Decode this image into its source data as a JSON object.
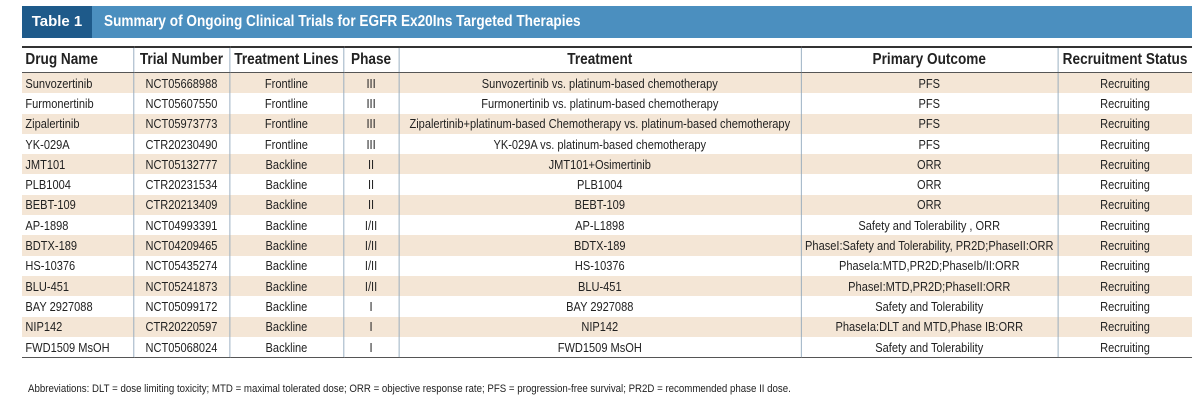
{
  "header": {
    "label": "Table 1",
    "title": "Summary of Ongoing Clinical Trials for EGFR Ex20Ins Targeted Therapies"
  },
  "table": {
    "columns": [
      "Drug Name",
      "Trial Number",
      "Treatment Lines",
      "Phase",
      "Treatment",
      "Primary Outcome",
      "Recruitment Status"
    ],
    "rows": [
      [
        "Sunvozertinib",
        "NCT05668988",
        "Frontline",
        "III",
        "Sunvozertinib vs. platinum-based chemotherapy",
        "PFS",
        "Recruiting"
      ],
      [
        "Furmonertinib",
        "NCT05607550",
        "Frontline",
        "III",
        "Furmonertinib vs. platinum-based chemotherapy",
        "PFS",
        "Recruiting"
      ],
      [
        "Zipalertinib",
        "NCT05973773",
        "Frontline",
        "III",
        "Zipalertinib+platinum-based Chemotherapy vs. platinum-based chemotherapy",
        "PFS",
        "Recruiting"
      ],
      [
        "YK-029A",
        "CTR20230490",
        "Frontline",
        "III",
        "YK-029A vs. platinum-based chemotherapy",
        "PFS",
        "Recruiting"
      ],
      [
        "JMT101",
        "NCT05132777",
        "Backline",
        "II",
        "JMT101+Osimertinib",
        "ORR",
        "Recruiting"
      ],
      [
        "PLB1004",
        "CTR20231534",
        "Backline",
        "II",
        "PLB1004",
        "ORR",
        "Recruiting"
      ],
      [
        "BEBT-109",
        "CTR20213409",
        "Backline",
        "II",
        "BEBT-109",
        "ORR",
        "Recruiting"
      ],
      [
        "AP-1898",
        "NCT04993391",
        "Backline",
        "I/II",
        "AP-L1898",
        "Safety and Tolerability , ORR",
        "Recruiting"
      ],
      [
        "BDTX-189",
        "NCT04209465",
        "Backline",
        "I/II",
        "BDTX-189",
        "PhaseI:Safety and Tolerability, PR2D;PhaseII:ORR",
        "Recruiting"
      ],
      [
        "HS-10376",
        "NCT05435274",
        "Backline",
        "I/II",
        "HS-10376",
        "PhaseIa:MTD,PR2D;PhaseIb/II:ORR",
        "Recruiting"
      ],
      [
        "BLU-451",
        "NCT05241873",
        "Backline",
        "I/II",
        "BLU-451",
        "PhaseI:MTD,PR2D;PhaseII:ORR",
        "Recruiting"
      ],
      [
        "BAY 2927088",
        "NCT05099172",
        "Backline",
        "I",
        "BAY 2927088",
        "Safety and Tolerability",
        "Recruiting"
      ],
      [
        "NIP142",
        "CTR20220597",
        "Backline",
        "I",
        "NIP142",
        "PhaseIa:DLT and MTD,Phase IB:ORR",
        "Recruiting"
      ],
      [
        "FWD1509 MsOH",
        "NCT05068024",
        "Backline",
        "I",
        "FWD1509 MsOH",
        "Safety and Tolerability",
        "Recruiting"
      ]
    ]
  },
  "footnote": "Abbreviations: DLT = dose limiting toxicity; MTD = maximal tolerated dose; ORR = objective response rate; PFS = progression-free survival; PR2D = recommended phase II dose."
}
